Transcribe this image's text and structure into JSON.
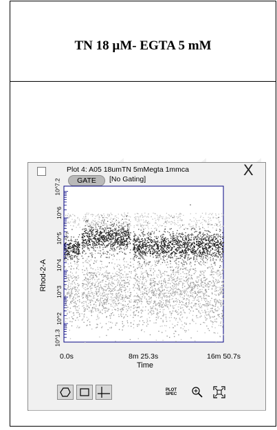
{
  "table": {
    "title": "TN 18 µM- EGTA 5 mM"
  },
  "plot_window": {
    "title": "Plot 4: A05 18umTN 5mMegta 1mmca",
    "gate_button": "GATE",
    "gating_status": "[No Gating]",
    "close_glyph": "X"
  },
  "axes": {
    "ylabel": "Rhod-2-A",
    "xlabel": "Time",
    "yticks": [
      "10^1.3",
      "10^2",
      "10^3",
      "10^4",
      "10^5",
      "10^6",
      "10^7.2"
    ],
    "xticks": [
      "0.0s",
      "8m 25.3s",
      "16m 50.7s"
    ]
  },
  "toolbar": {
    "polygon_gate": "polygon-gate-icon",
    "rect_gate": "rectangle-gate-icon",
    "quad_gate": "quadrant-gate-icon",
    "plot_spec_line1": "PLOT",
    "plot_spec_line2": "SPEC",
    "zoom": "zoom-in-icon",
    "fit": "fit-to-window-icon"
  },
  "chart_data": {
    "type": "scatter",
    "title": "Plot 4: A05 18umTN 5mMegta 1mmca",
    "xlabel": "Time",
    "ylabel": "Rhod-2-A",
    "xlim": [
      0,
      1010.7
    ],
    "ylim": [
      1.3,
      7.2
    ],
    "ylog": true,
    "x_tick_labels": [
      "0.0s",
      "8m 25.3s",
      "16m 50.7s"
    ],
    "y_tick_labels": [
      "10^1.3",
      "10^2",
      "10^3",
      "10^4",
      "10^5",
      "10^6",
      "10^7.2"
    ],
    "density_bands": [
      {
        "x_start": 0,
        "x_end": 100,
        "center_log": 4.85,
        "spread": 0.25,
        "density": "high"
      },
      {
        "x_start": 110,
        "x_end": 420,
        "center_log": 5.25,
        "spread": 0.3,
        "density": "high"
      },
      {
        "x_start": 435,
        "x_end": 1010,
        "center_log": 4.95,
        "spread": 0.3,
        "density": "high"
      },
      {
        "x_start": 0,
        "x_end": 1010,
        "center_log": 3.2,
        "spread": 0.7,
        "density": "medium"
      }
    ],
    "gaps_at": [
      105,
      430
    ]
  }
}
